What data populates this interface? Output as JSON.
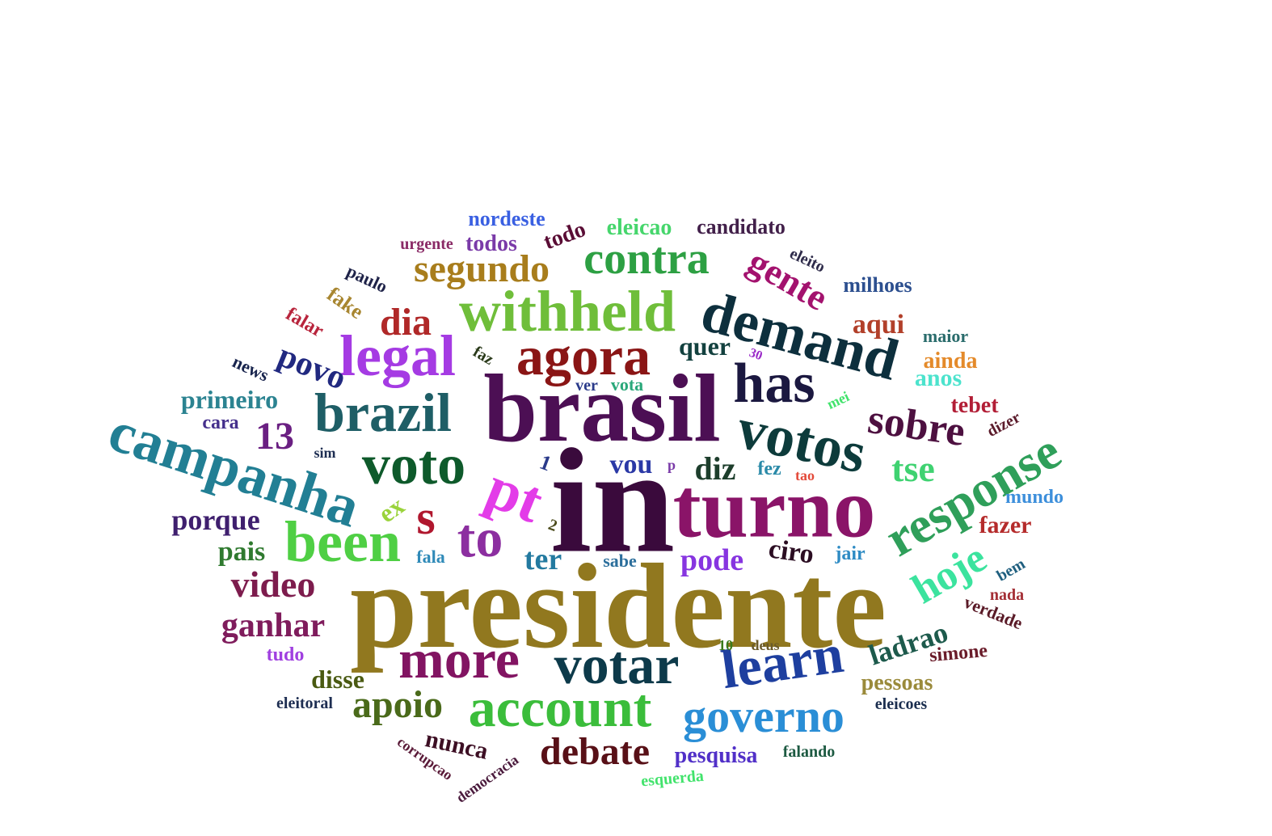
{
  "word_cloud": {
    "words": [
      {
        "text": "presidente",
        "color": "#91781f"
      },
      {
        "text": "in",
        "color": "#3a0a3c"
      },
      {
        "text": "brasil",
        "color": "#4c0f54"
      },
      {
        "text": "turno",
        "color": "#8a1468"
      },
      {
        "text": "withheld",
        "color": "#6fbe3a"
      },
      {
        "text": "agora",
        "color": "#8a1515"
      },
      {
        "text": "demand",
        "color": "#0d2f3d"
      },
      {
        "text": "has",
        "color": "#1b1840"
      },
      {
        "text": "votos",
        "color": "#0d3b3b"
      },
      {
        "text": "voto",
        "color": "#0e5a2b"
      },
      {
        "text": "brazil",
        "color": "#1e5e66"
      },
      {
        "text": "campanha",
        "color": "#227f94"
      },
      {
        "text": "legal",
        "color": "#a53be3"
      },
      {
        "text": "pt",
        "color": "#e33ce8"
      },
      {
        "text": "been",
        "color": "#4fcf44"
      },
      {
        "text": "to",
        "color": "#8c2fa0"
      },
      {
        "text": "s",
        "color": "#b0172e"
      },
      {
        "text": "account",
        "color": "#3bbd3b"
      },
      {
        "text": "votar",
        "color": "#0d3a4a"
      },
      {
        "text": "more",
        "color": "#821462"
      },
      {
        "text": "learn",
        "color": "#1e3f9f"
      },
      {
        "text": "governo",
        "color": "#2a8ed6"
      },
      {
        "text": "response",
        "color": "#2f9f5a"
      },
      {
        "text": "contra",
        "color": "#2da043"
      },
      {
        "text": "sobre",
        "color": "#4d1040"
      },
      {
        "text": "hoje",
        "color": "#3be39e"
      },
      {
        "text": "segundo",
        "color": "#a87d1c"
      },
      {
        "text": "gente",
        "color": "#a3126e"
      },
      {
        "text": "dia",
        "color": "#b02828"
      },
      {
        "text": "debate",
        "color": "#581017"
      },
      {
        "text": "apoio",
        "color": "#4a6a1a"
      },
      {
        "text": "video",
        "color": "#7d1c4d"
      },
      {
        "text": "ganhar",
        "color": "#7f1c5c"
      },
      {
        "text": "tse",
        "color": "#3fd271"
      },
      {
        "text": "13",
        "color": "#6a1f82"
      },
      {
        "text": "povo",
        "color": "#212980"
      },
      {
        "text": "diz",
        "color": "#1d3e2c"
      },
      {
        "text": "pode",
        "color": "#8735e0"
      },
      {
        "text": "porque",
        "color": "#3f1f6e"
      },
      {
        "text": "ter",
        "color": "#237aa0"
      },
      {
        "text": "ladrao",
        "color": "#1d5a4c"
      },
      {
        "text": "ciro",
        "color": "#2b0d22"
      },
      {
        "text": "vou",
        "color": "#2b39a6"
      },
      {
        "text": "aqui",
        "color": "#b2402a"
      },
      {
        "text": "primeiro",
        "color": "#2b8391"
      },
      {
        "text": "quer",
        "color": "#13413f"
      },
      {
        "text": "fazer",
        "color": "#b52b2b"
      },
      {
        "text": "pais",
        "color": "#2f7a2f"
      },
      {
        "text": "disse",
        "color": "#4a5a12"
      },
      {
        "text": "anos",
        "color": "#4ce3cd"
      },
      {
        "text": "nunca",
        "color": "#3d0f24"
      },
      {
        "text": "pesquisa",
        "color": "#5130c8"
      },
      {
        "text": "ex",
        "color": "#9ad33b"
      },
      {
        "text": "todos",
        "color": "#7a3aa8"
      },
      {
        "text": "candidato",
        "color": "#42204a"
      },
      {
        "text": "eleicao",
        "color": "#46d66c"
      },
      {
        "text": "nordeste",
        "color": "#3a60e2"
      },
      {
        "text": "milhoes",
        "color": "#2c4f8f"
      },
      {
        "text": "tebet",
        "color": "#b21e36"
      },
      {
        "text": "ainda",
        "color": "#e48a2a"
      },
      {
        "text": "pessoas",
        "color": "#9a8a3a"
      },
      {
        "text": "simone",
        "color": "#6a1c2a"
      },
      {
        "text": "verdade",
        "color": "#5a1a27"
      },
      {
        "text": "todo",
        "color": "#5a0d35"
      },
      {
        "text": "fake",
        "color": "#a88630"
      },
      {
        "text": "falar",
        "color": "#b8243c"
      },
      {
        "text": "paulo",
        "color": "#1e2248"
      },
      {
        "text": "news",
        "color": "#18244d"
      },
      {
        "text": "cara",
        "color": "#45308c"
      },
      {
        "text": "jair",
        "color": "#2e8bc4"
      },
      {
        "text": "mundo",
        "color": "#3d8fdb"
      },
      {
        "text": "tudo",
        "color": "#a040e0"
      },
      {
        "text": "fala",
        "color": "#2f8ab8"
      },
      {
        "text": "sabe",
        "color": "#2c6f9c"
      },
      {
        "text": "fez",
        "color": "#2a8aa8"
      },
      {
        "text": "bem",
        "color": "#1f5f7f"
      },
      {
        "text": "nada",
        "color": "#a42f36"
      },
      {
        "text": "dizer",
        "color": "#5a1a2a"
      },
      {
        "text": "maior",
        "color": "#2a6c6c"
      },
      {
        "text": "eleito",
        "color": "#2e2b4a"
      },
      {
        "text": "urgente",
        "color": "#8a2a66"
      },
      {
        "text": "eleitoral",
        "color": "#1e2e52"
      },
      {
        "text": "eleicoes",
        "color": "#1b2e4f"
      },
      {
        "text": "falando",
        "color": "#1d5a42"
      },
      {
        "text": "esquerda",
        "color": "#42e36c"
      },
      {
        "text": "democracia",
        "color": "#4a1a3c"
      },
      {
        "text": "corrupcao",
        "color": "#5a1a38"
      },
      {
        "text": "deus",
        "color": "#6a5a2a"
      },
      {
        "text": "faz",
        "color": "#2a3a1a"
      },
      {
        "text": "ver",
        "color": "#2a3a8a"
      },
      {
        "text": "vota",
        "color": "#2aa87a"
      },
      {
        "text": "mei",
        "color": "#42e36c"
      },
      {
        "text": "tao",
        "color": "#e34a3a"
      },
      {
        "text": "30",
        "color": "#9a2ac8"
      },
      {
        "text": "10",
        "color": "#3a7a1a"
      },
      {
        "text": "1",
        "color": "#2a3a8a"
      },
      {
        "text": "2",
        "color": "#4a4a1a"
      },
      {
        "text": "sim",
        "color": "#1e2e52"
      },
      {
        "text": "p",
        "color": "#7a3aa8"
      }
    ]
  }
}
